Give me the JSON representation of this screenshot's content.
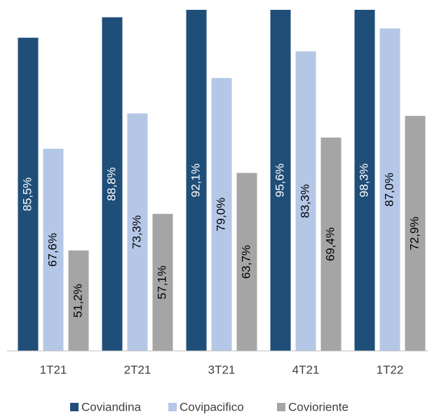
{
  "chart_data": {
    "type": "bar",
    "categories": [
      "1T21",
      "2T21",
      "3T21",
      "4T21",
      "1T22"
    ],
    "series": [
      {
        "name": "Coviandina",
        "color": "#1f4e79",
        "values": [
          85.5,
          88.8,
          92.1,
          95.6,
          98.3
        ],
        "value_labels": [
          "85,5%",
          "88,8%",
          "92,1%",
          "95,6%",
          "98,3%"
        ]
      },
      {
        "name": "Covipacifico",
        "color": "#b4c7e7",
        "values": [
          67.6,
          73.3,
          79.0,
          83.3,
          87.0
        ],
        "value_labels": [
          "67,6%",
          "73,3%",
          "79,0%",
          "83,3%",
          "87,0%"
        ]
      },
      {
        "name": "Covioriente",
        "color": "#a5a5a5",
        "values": [
          51.2,
          57.1,
          63.7,
          69.4,
          72.9
        ],
        "value_labels": [
          "51,2%",
          "57,1%",
          "63,7%",
          "69,4%",
          "72,9%"
        ]
      }
    ],
    "ylim": [
      35,
      90
    ]
  }
}
